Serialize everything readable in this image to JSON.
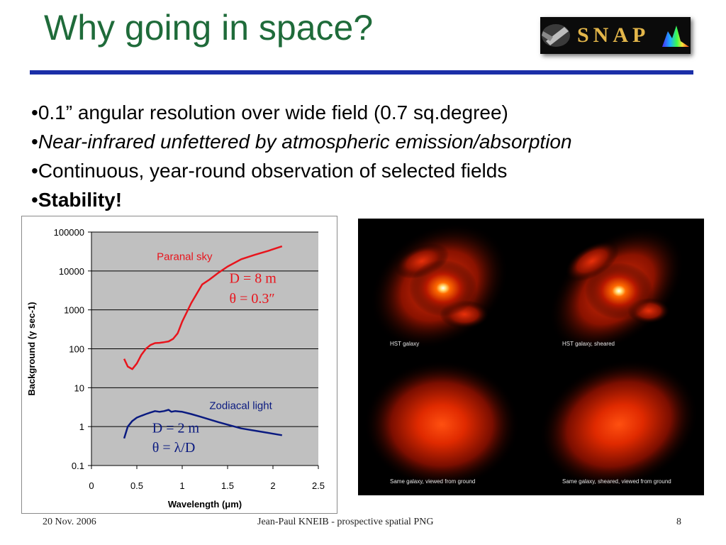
{
  "slide": {
    "title": "Why going in space?",
    "logo_text": "SNAP",
    "bullets": [
      {
        "marker": "•",
        "text": "0.1” angular resolution over wide field (0.7 sq.degree)",
        "style": "normal"
      },
      {
        "marker": "•",
        "text": "Near-infrared unfettered by atmospheric emission/absorption",
        "style": "italic"
      },
      {
        "marker": "•",
        "text": "Continuous, year-round observation of selected fields",
        "style": "normal"
      },
      {
        "marker": "•",
        "text": "Stability!",
        "style": "bold"
      }
    ],
    "photo_captions": [
      "HST galaxy",
      "HST galaxy, sheared",
      "Same galaxy, viewed from ground",
      "Same galaxy, sheared, viewed from ground"
    ],
    "footer": {
      "date": "20 Nov. 2006",
      "center": "Jean-Paul KNEIB - prospective spatial PNG",
      "page": "8"
    }
  },
  "colors": {
    "title": "#1f6b3a",
    "rule": "#1b2fa8",
    "red_series": "#e8141c",
    "blue_series": "#0a1a80",
    "plot_bg": "#c0c0c0"
  },
  "chart_data": {
    "type": "line",
    "xlabel": "Wavelength (μm)",
    "ylabel": "Background (γ sec-1)",
    "xlim": [
      0,
      2.5
    ],
    "ylim": [
      0.1,
      100000
    ],
    "yscale": "log",
    "x_ticks": [
      "0",
      "0.5",
      "1",
      "1.5",
      "2",
      "2.5"
    ],
    "y_ticks": [
      "0.1",
      "1",
      "10",
      "100",
      "1000",
      "10000",
      "100000"
    ],
    "grid": "horizontal",
    "series": [
      {
        "name": "Paranal sky",
        "color": "#e8141c",
        "points": [
          [
            0.36,
            55
          ],
          [
            0.4,
            35
          ],
          [
            0.45,
            30
          ],
          [
            0.5,
            42
          ],
          [
            0.55,
            70
          ],
          [
            0.6,
            100
          ],
          [
            0.65,
            125
          ],
          [
            0.7,
            140
          ],
          [
            0.75,
            142
          ],
          [
            0.8,
            148
          ],
          [
            0.85,
            155
          ],
          [
            0.9,
            180
          ],
          [
            0.95,
            250
          ],
          [
            1.0,
            500
          ],
          [
            1.1,
            1500
          ],
          [
            1.22,
            4500
          ],
          [
            1.3,
            6000
          ],
          [
            1.4,
            9000
          ],
          [
            1.5,
            13000
          ],
          [
            1.65,
            20000
          ],
          [
            1.8,
            26000
          ],
          [
            1.95,
            33000
          ],
          [
            2.1,
            43000
          ]
        ]
      },
      {
        "name": "Zodiacal light",
        "color": "#0a1a80",
        "points": [
          [
            0.36,
            0.5
          ],
          [
            0.4,
            1.0
          ],
          [
            0.45,
            1.4
          ],
          [
            0.5,
            1.7
          ],
          [
            0.55,
            1.9
          ],
          [
            0.6,
            2.1
          ],
          [
            0.65,
            2.3
          ],
          [
            0.7,
            2.5
          ],
          [
            0.75,
            2.4
          ],
          [
            0.8,
            2.5
          ],
          [
            0.85,
            2.7
          ],
          [
            0.88,
            2.4
          ],
          [
            0.92,
            2.5
          ],
          [
            1.0,
            2.4
          ],
          [
            1.1,
            2.1
          ],
          [
            1.2,
            1.8
          ],
          [
            1.4,
            1.3
          ],
          [
            1.65,
            0.9
          ],
          [
            1.9,
            0.72
          ],
          [
            2.1,
            0.6
          ]
        ]
      }
    ],
    "annotations": [
      {
        "id": "paranal-label",
        "text": "Paranal sky",
        "x": 0.72,
        "y": 19000,
        "color": "#e8141c"
      },
      {
        "id": "d8-label",
        "text": "D = 8 m",
        "x": 1.52,
        "y": 5000,
        "color": "#e8141c"
      },
      {
        "id": "theta-red-label",
        "text": "θ = 0.3″",
        "x": 1.52,
        "y": 1500,
        "color": "#e8141c"
      },
      {
        "id": "zodiacal-label",
        "text": "Zodiacal light",
        "x": 1.3,
        "y": 2.8,
        "color": "#0a1a80"
      },
      {
        "id": "d2-label",
        "text": "D = 2 m",
        "x": 0.67,
        "y": 0.7,
        "color": "#0a1a80"
      },
      {
        "id": "theta-blue-label",
        "text": "θ = λ/D",
        "x": 0.67,
        "y": 0.22,
        "color": "#0a1a80"
      }
    ]
  }
}
